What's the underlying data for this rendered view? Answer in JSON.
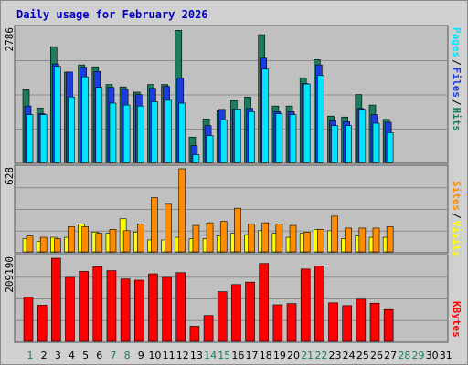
{
  "chart_data": [
    {
      "type": "bar",
      "panel": "top",
      "title": "Daily usage for February 2026",
      "ytick_label": "2786",
      "legend": [
        "Pages",
        "Files",
        "Hits"
      ],
      "days": [
        1,
        2,
        3,
        4,
        5,
        6,
        7,
        8,
        9,
        10,
        11,
        12,
        13,
        14,
        15,
        16,
        17,
        18,
        19,
        20,
        21,
        22,
        23,
        24,
        25,
        26,
        27,
        28,
        29,
        30,
        31
      ],
      "series": [
        {
          "name": "Hits",
          "values": [
            1520,
            1140,
            2420,
            1890,
            2040,
            2000,
            1630,
            1580,
            1470,
            1630,
            1630,
            2760,
            530,
            910,
            1080,
            1290,
            1370,
            2670,
            1180,
            1180,
            1770,
            2150,
            970,
            950,
            1420,
            1200,
            900,
            0,
            0,
            0,
            0
          ]
        },
        {
          "name": "Files",
          "values": [
            1180,
            1020,
            2060,
            1890,
            1990,
            1900,
            1570,
            1530,
            1420,
            1550,
            1590,
            1760,
            350,
            770,
            1110,
            1120,
            1130,
            2180,
            1060,
            1060,
            1650,
            2040,
            870,
            850,
            1130,
            1000,
            840,
            0,
            0,
            0,
            0
          ]
        },
        {
          "name": "Pages",
          "values": [
            1000,
            1000,
            2010,
            1370,
            1790,
            1570,
            1240,
            1200,
            1180,
            1270,
            1300,
            1240,
            160,
            560,
            890,
            1120,
            1060,
            1950,
            1020,
            1000,
            1640,
            1820,
            770,
            770,
            1110,
            820,
            620,
            0,
            0,
            0,
            0
          ]
        }
      ],
      "colors": {
        "Hits": "#1c7c60",
        "Files": "#1c3ce0",
        "Pages": "#00e4ff"
      },
      "ylim": [
        0,
        2786
      ]
    },
    {
      "type": "bar",
      "panel": "middle",
      "ytick_label": "628",
      "legend": [
        "Sites",
        "Visits"
      ],
      "series": [
        {
          "name": "Visits",
          "values": [
            100,
            80,
            110,
            110,
            210,
            150,
            140,
            250,
            150,
            90,
            90,
            110,
            100,
            100,
            120,
            140,
            130,
            160,
            140,
            110,
            140,
            170,
            160,
            100,
            120,
            110,
            110,
            0,
            0,
            0,
            0
          ]
        },
        {
          "name": "Sites",
          "values": [
            120,
            110,
            100,
            190,
            190,
            140,
            170,
            160,
            210,
            410,
            360,
            628,
            200,
            220,
            230,
            330,
            210,
            220,
            210,
            200,
            150,
            170,
            270,
            180,
            180,
            180,
            190,
            0,
            0,
            0,
            0
          ]
        }
      ],
      "colors": {
        "Visits": "#ffff00",
        "Sites": "#ff8c00"
      },
      "ylim": [
        0,
        628
      ]
    },
    {
      "type": "bar",
      "panel": "bottom",
      "ytick_label": "209190",
      "legend": [
        "KBytes"
      ],
      "series": [
        {
          "name": "KBytes",
          "values": [
            111000,
            91000,
            209190,
            161000,
            176000,
            188000,
            178000,
            157000,
            154000,
            170000,
            161000,
            173000,
            38000,
            65000,
            125000,
            143000,
            149000,
            196000,
            92000,
            95000,
            182000,
            190000,
            97000,
            90000,
            106000,
            96000,
            80000,
            0,
            0,
            0,
            0
          ]
        }
      ],
      "colors": {
        "KBytes": "#ff0000"
      },
      "ylim": [
        0,
        209190
      ]
    }
  ],
  "weekend_days": [
    1,
    7,
    8,
    14,
    15,
    21,
    22,
    28,
    29
  ]
}
